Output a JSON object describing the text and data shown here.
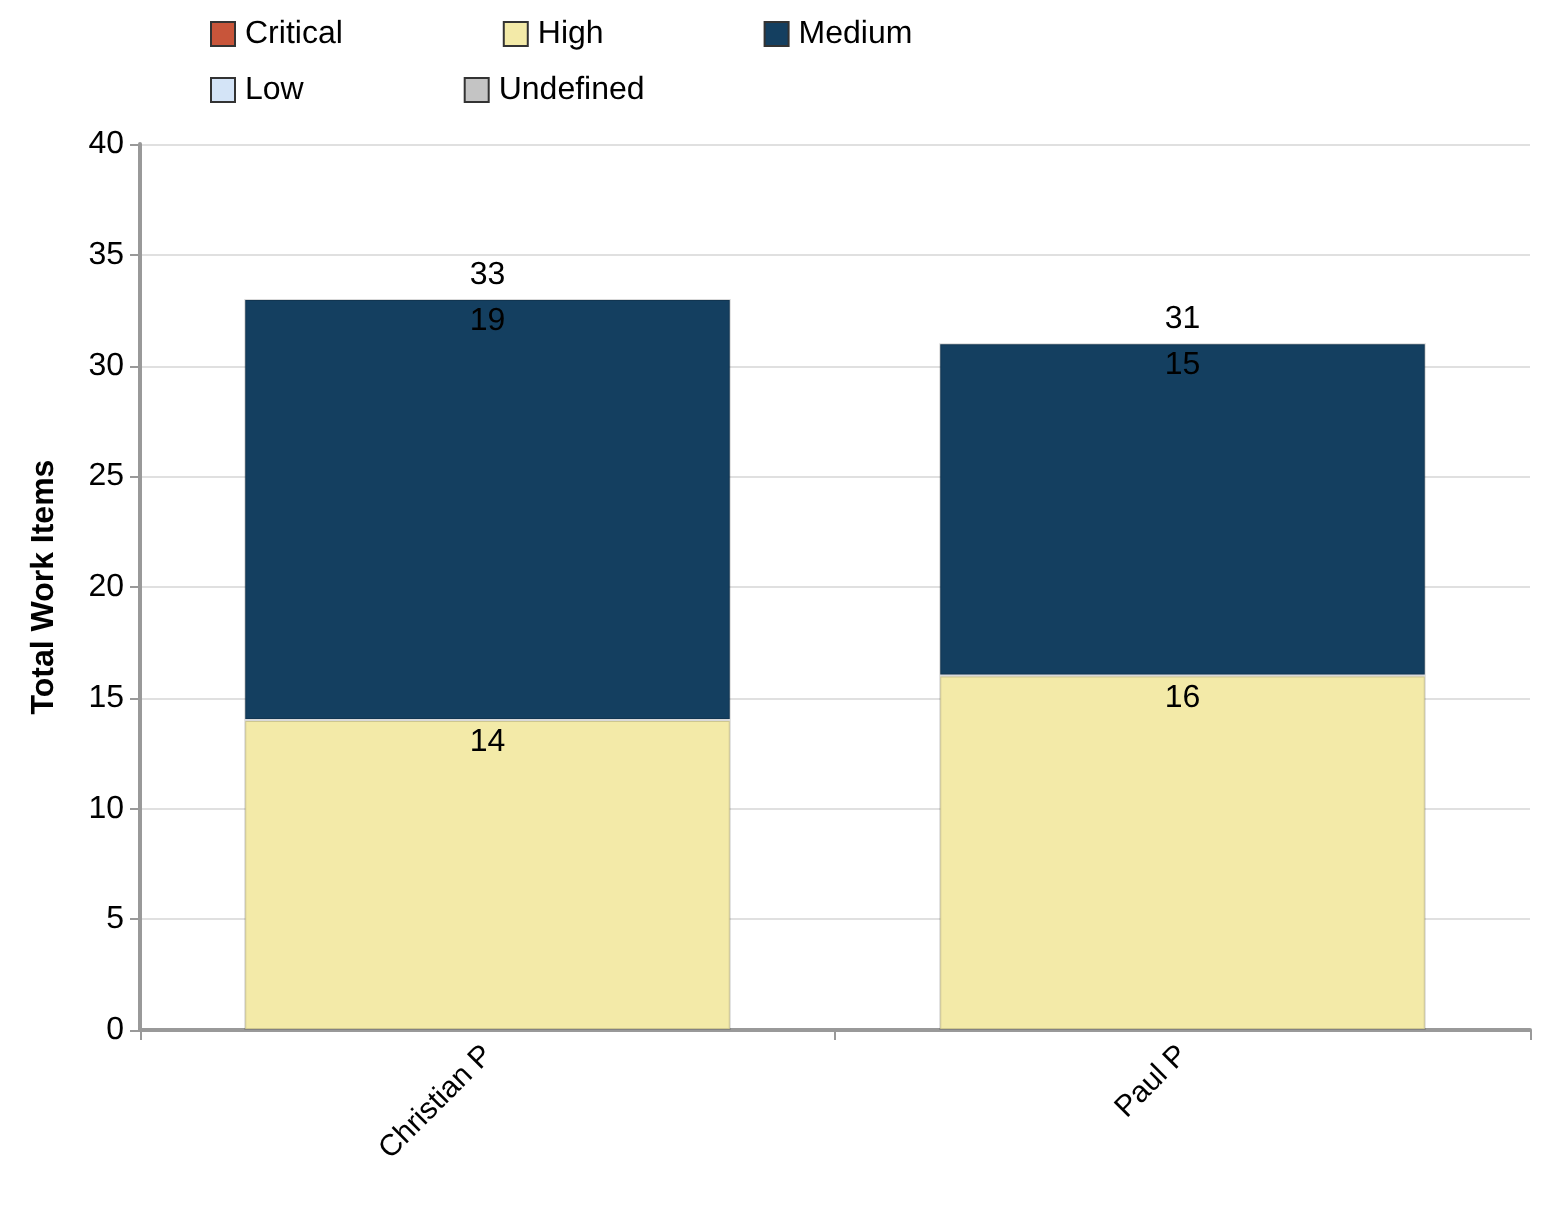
{
  "chart_data": {
    "type": "bar",
    "stacked": true,
    "ylabel": "Total Work Items",
    "categories": [
      "Christian P",
      "Paul P"
    ],
    "series": [
      {
        "name": "Critical",
        "color": "#c8553a",
        "values": [
          null,
          null
        ]
      },
      {
        "name": "High",
        "color": "#f3eaa8",
        "values": [
          14,
          16
        ]
      },
      {
        "name": "Medium",
        "color": "#143f60",
        "values": [
          19,
          15
        ]
      },
      {
        "name": "Low",
        "color": "#d4e4f7",
        "values": [
          null,
          null
        ]
      },
      {
        "name": "Undefined",
        "color": "#c4c4c4",
        "values": [
          null,
          null
        ]
      }
    ],
    "totals": [
      "33",
      "31"
    ],
    "data_labels": true,
    "ylim": [
      0,
      40
    ],
    "yticks": [
      0,
      5,
      10,
      15,
      20,
      25,
      30,
      35,
      40
    ],
    "grid": "y",
    "legend": "top left"
  }
}
